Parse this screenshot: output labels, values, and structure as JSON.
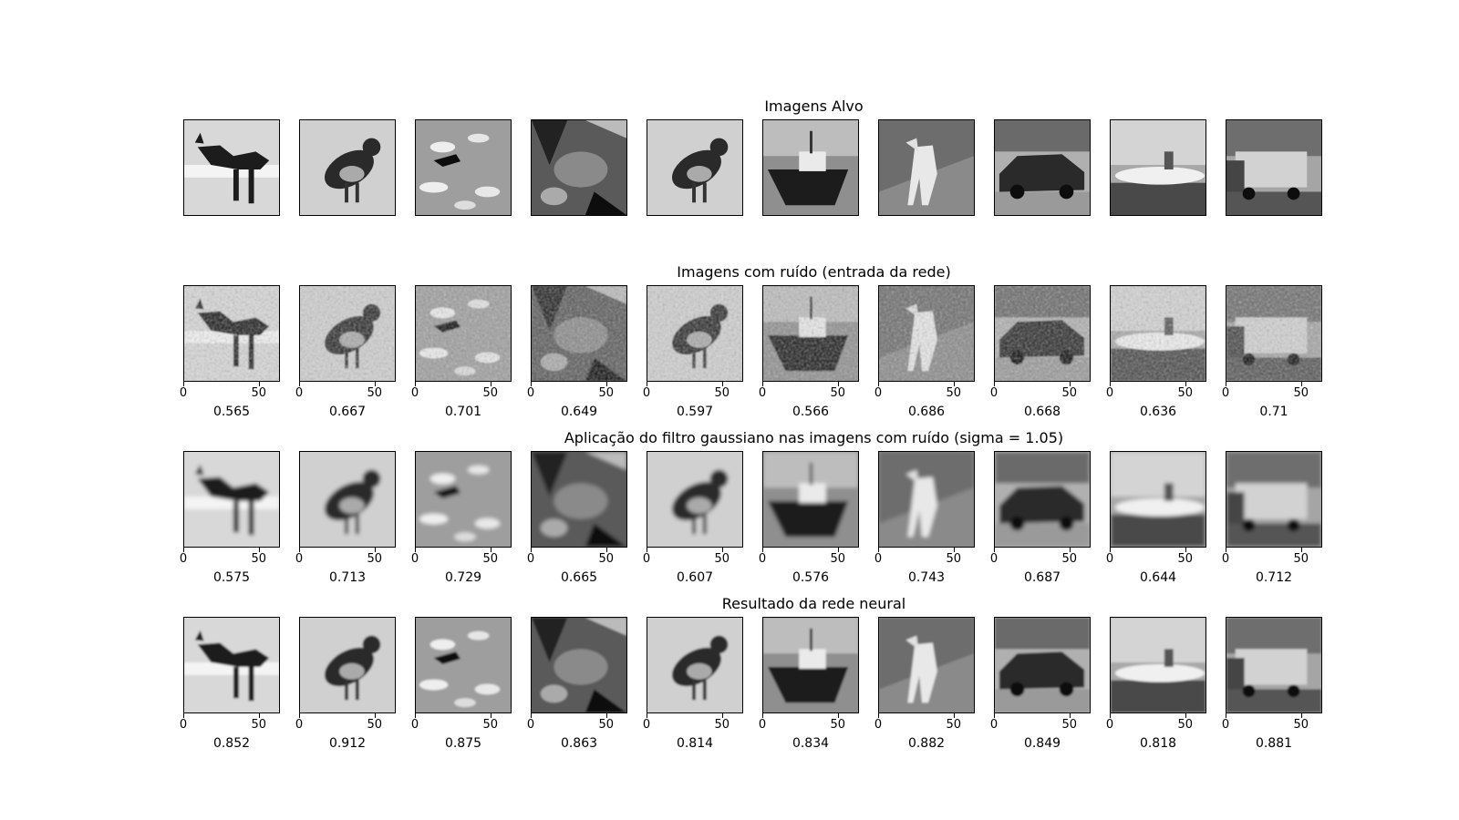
{
  "rows": [
    {
      "title": "Imagens Alvo",
      "show_ticks": false,
      "scores": []
    },
    {
      "title": "Imagens com ruído (entrada da rede)",
      "show_ticks": true,
      "scores": [
        "0.565",
        "0.667",
        "0.701",
        "0.649",
        "0.597",
        "0.566",
        "0.686",
        "0.668",
        "0.636",
        "0.71"
      ]
    },
    {
      "title": "Aplicação do filtro gaussiano nas imagens com ruído (sigma = 1.05)",
      "show_ticks": true,
      "scores": [
        "0.575",
        "0.713",
        "0.729",
        "0.665",
        "0.607",
        "0.576",
        "0.743",
        "0.687",
        "0.644",
        "0.712"
      ]
    },
    {
      "title": "Resultado da rede neural",
      "show_ticks": true,
      "scores": [
        "0.852",
        "0.912",
        "0.875",
        "0.863",
        "0.814",
        "0.834",
        "0.882",
        "0.849",
        "0.818",
        "0.881"
      ]
    }
  ],
  "tick_labels": [
    "0",
    "50"
  ],
  "images": [
    "cat",
    "bird",
    "airplane",
    "frog",
    "bird",
    "ship",
    "horse",
    "automobile",
    "ship",
    "truck"
  ]
}
